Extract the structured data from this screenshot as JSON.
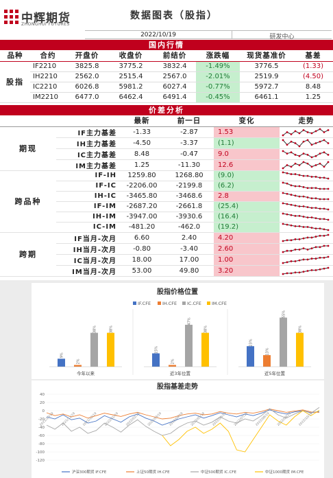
{
  "header": {
    "logo_cn": "中辉期货",
    "logo_en": "ZHONGHUI FUTURES",
    "title": "数据图表（股指）",
    "date": "2022/10/19",
    "dept": "研发中心"
  },
  "domestic": {
    "band": "国内行情",
    "columns": [
      "品种",
      "合约",
      "开盘价",
      "收盘价",
      "前结价",
      "涨跌幅",
      "现货基准价",
      "基差"
    ],
    "group": "股指",
    "rows": [
      {
        "code": "IF2210",
        "open": "3825.8",
        "close": "3775.2",
        "prev": "3832.4",
        "chg": "-1.49%",
        "spot": "3776.5",
        "basis": "(1.33)"
      },
      {
        "code": "IH2210",
        "open": "2562.0",
        "close": "2515.4",
        "prev": "2567.0",
        "chg": "-2.01%",
        "spot": "2519.9",
        "basis": "(4.50)"
      },
      {
        "code": "IC2210",
        "open": "6026.8",
        "close": "5981.2",
        "prev": "6027.4",
        "chg": "-0.77%",
        "spot": "5972.7",
        "basis": "8.48"
      },
      {
        "code": "IM2210",
        "open": "6477.0",
        "close": "6462.4",
        "prev": "6491.4",
        "chg": "-0.45%",
        "spot": "6461.1",
        "basis": "1.25"
      }
    ]
  },
  "spread": {
    "band": "价差分析",
    "columns": [
      "最新",
      "前一日",
      "变化",
      "走势"
    ],
    "groups": [
      {
        "name": "期现",
        "rows": [
          {
            "label": "IF主力基差",
            "latest": "-1.33",
            "prev": "-2.87",
            "change": "1.53",
            "sign": "pos",
            "trend": [
              3,
              6,
              4,
              7,
              5,
              8,
              6,
              5,
              7,
              9,
              6,
              8
            ]
          },
          {
            "label": "IH主力基差",
            "latest": "-4.50",
            "prev": "-3.37",
            "change": "(1.1)",
            "sign": "neg",
            "trend": [
              7,
              4,
              6,
              5,
              3,
              6,
              7,
              4,
              5,
              6,
              7,
              5
            ]
          },
          {
            "label": "IC主力基差",
            "latest": "8.48",
            "prev": "-0.47",
            "change": "9.0",
            "sign": "pos",
            "trend": [
              9,
              7,
              8,
              6,
              5,
              7,
              6,
              4,
              5,
              7,
              8,
              6
            ]
          },
          {
            "label": "IM主力基差",
            "latest": "1.25",
            "prev": "-11.30",
            "change": "12.6",
            "sign": "pos",
            "trend": [
              4,
              6,
              5,
              7,
              6,
              8,
              7,
              5,
              6,
              7,
              5,
              8
            ]
          }
        ]
      },
      {
        "name": "跨品种",
        "rows": [
          {
            "label": "IF-IH",
            "latest": "1259.80",
            "prev": "1268.80",
            "change": "(9.0)",
            "sign": "neg",
            "trend": [
              9,
              8,
              7,
              7,
              6,
              5,
              5,
              4,
              4,
              3,
              3,
              2
            ]
          },
          {
            "label": "IF-IC",
            "latest": "-2206.00",
            "prev": "-2199.8",
            "change": "(6.2)",
            "sign": "neg",
            "trend": [
              9,
              8,
              6,
              5,
              5,
              4,
              3,
              3,
              3,
              2,
              2,
              2
            ]
          },
          {
            "label": "IH-IC",
            "latest": "-3465.80",
            "prev": "-3468.6",
            "change": "2.8",
            "sign": "pos",
            "trend": [
              9,
              8,
              7,
              6,
              5,
              5,
              4,
              3,
              3,
              2,
              2,
              2
            ]
          },
          {
            "label": "IF-IM",
            "latest": "-2687.20",
            "prev": "-2661.8",
            "change": "(25.4)",
            "sign": "neg",
            "trend": [
              9,
              8,
              7,
              6,
              5,
              5,
              4,
              3,
              3,
              2,
              2,
              1
            ]
          },
          {
            "label": "IH-IM",
            "latest": "-3947.00",
            "prev": "-3930.6",
            "change": "(16.4)",
            "sign": "neg",
            "trend": [
              9,
              8,
              7,
              6,
              6,
              5,
              4,
              4,
              3,
              2,
              2,
              1
            ]
          },
          {
            "label": "IC-IM",
            "latest": "-481.20",
            "prev": "-462.0",
            "change": "(19.2)",
            "sign": "neg",
            "trend": [
              9,
              8,
              7,
              6,
              6,
              5,
              5,
              4,
              3,
              3,
              2,
              1
            ]
          }
        ]
      },
      {
        "name": "跨期",
        "rows": [
          {
            "label": "IF当月-次月",
            "latest": "6.60",
            "prev": "2.40",
            "change": "4.20",
            "sign": "pos",
            "trend": [
              2,
              3,
              3,
              4,
              4,
              5,
              6,
              6,
              7,
              8,
              8,
              9
            ]
          },
          {
            "label": "IH当月-次月",
            "latest": "-0.80",
            "prev": "-3.40",
            "change": "2.60",
            "sign": "pos",
            "trend": [
              3,
              4,
              4,
              5,
              5,
              6,
              5,
              6,
              7,
              7,
              8,
              8
            ]
          },
          {
            "label": "IC当月-次月",
            "latest": "18.00",
            "prev": "17.00",
            "change": "1.00",
            "sign": "pos",
            "trend": [
              2,
              3,
              4,
              4,
              5,
              6,
              6,
              7,
              7,
              8,
              8,
              9
            ]
          },
          {
            "label": "IM当月-次月",
            "latest": "53.00",
            "prev": "49.80",
            "change": "3.20",
            "sign": "pos",
            "trend": [
              1,
              2,
              2,
              3,
              3,
              4,
              5,
              6,
              6,
              7,
              8,
              9
            ]
          }
        ]
      }
    ]
  },
  "chart_data": [
    {
      "type": "bar",
      "title": "股指价格位置",
      "categories": [
        "今年以来",
        "近3年位置",
        "近5年位置"
      ],
      "series": [
        {
          "name": "IF.CFE",
          "color": "#4472c4",
          "values": [
            9,
            15,
            23
          ]
        },
        {
          "name": "IH.CFE",
          "color": "#ed7d31",
          "values": [
            2,
            2,
            13
          ]
        },
        {
          "name": "IC.CFE",
          "color": "#a5a5a5",
          "values": [
            38,
            47,
            55
          ]
        },
        {
          "name": "IM.CFE",
          "color": "#ffc000",
          "values": [
            38,
            38,
            38
          ]
        }
      ],
      "data_labels": [
        [
          "9%",
          "2%",
          "38%",
          "38%"
        ],
        [
          "15%",
          "2%",
          "47%",
          "38%"
        ],
        [
          "23%",
          "13%",
          "55%",
          "38%"
        ]
      ],
      "ylim": [
        0,
        60
      ],
      "legend": "top"
    },
    {
      "type": "line",
      "title": "股指基差走势",
      "ylim": [
        -120,
        40
      ],
      "yticks": [
        40,
        20,
        0,
        -20,
        -40,
        -60,
        -80,
        -100,
        -120
      ],
      "xticks": [
        "2021/10/19",
        "2021/11/19",
        "2021/12/19",
        "2022/01/19",
        "2022/02/19",
        "2022/03/19",
        "2022/04/19",
        "2022/05/19",
        "2022/06/19",
        "2022/07/19",
        "2022/08/19",
        "2022/09/19",
        "2022/10/19"
      ],
      "series": [
        {
          "name": "沪深300期货 IF.CFE",
          "color": "#4472c4",
          "values": [
            -15,
            -20,
            -10,
            -22,
            -18,
            -30,
            -25,
            -12,
            -20,
            -28,
            -15,
            -8,
            -18,
            -25,
            -35,
            -28,
            -20,
            -15,
            -10,
            -18,
            -12,
            -5,
            -10,
            -15,
            -8,
            -12,
            -6,
            2,
            -4,
            -8,
            -3,
            0,
            -5,
            -2
          ]
        },
        {
          "name": "上证50期货 IH.CFE",
          "color": "#ed7d31",
          "values": [
            -5,
            -12,
            -8,
            -15,
            -10,
            -18,
            -12,
            -6,
            -10,
            -14,
            -8,
            -4,
            -10,
            -15,
            -20,
            -18,
            -12,
            -8,
            -6,
            -10,
            -8,
            -2,
            -6,
            -8,
            -4,
            -6,
            -2,
            4,
            0,
            -4,
            -1,
            2,
            -3,
            -4
          ]
        },
        {
          "name": "中证500期货 IC.CFE",
          "color": "#a5a5a5",
          "values": [
            -35,
            -45,
            -30,
            -50,
            -40,
            -55,
            -48,
            -30,
            -40,
            -52,
            -35,
            -22,
            -38,
            -50,
            -60,
            -55,
            -40,
            -30,
            -25,
            -35,
            -28,
            -15,
            -25,
            -30,
            -20,
            -25,
            -12,
            5,
            -10,
            -18,
            -8,
            0,
            -6,
            8
          ]
        },
        {
          "name": "中证1000期货 IM.CFE",
          "color": "#ffc000",
          "values": [
            null,
            null,
            null,
            null,
            null,
            null,
            null,
            null,
            null,
            null,
            null,
            null,
            null,
            null,
            -60,
            -85,
            -70,
            -50,
            -40,
            -55,
            -45,
            -30,
            -50,
            -95,
            -100,
            -70,
            -40,
            -10,
            -25,
            -35,
            -15,
            0,
            -12,
            1
          ]
        }
      ],
      "legend": "bottom"
    }
  ]
}
